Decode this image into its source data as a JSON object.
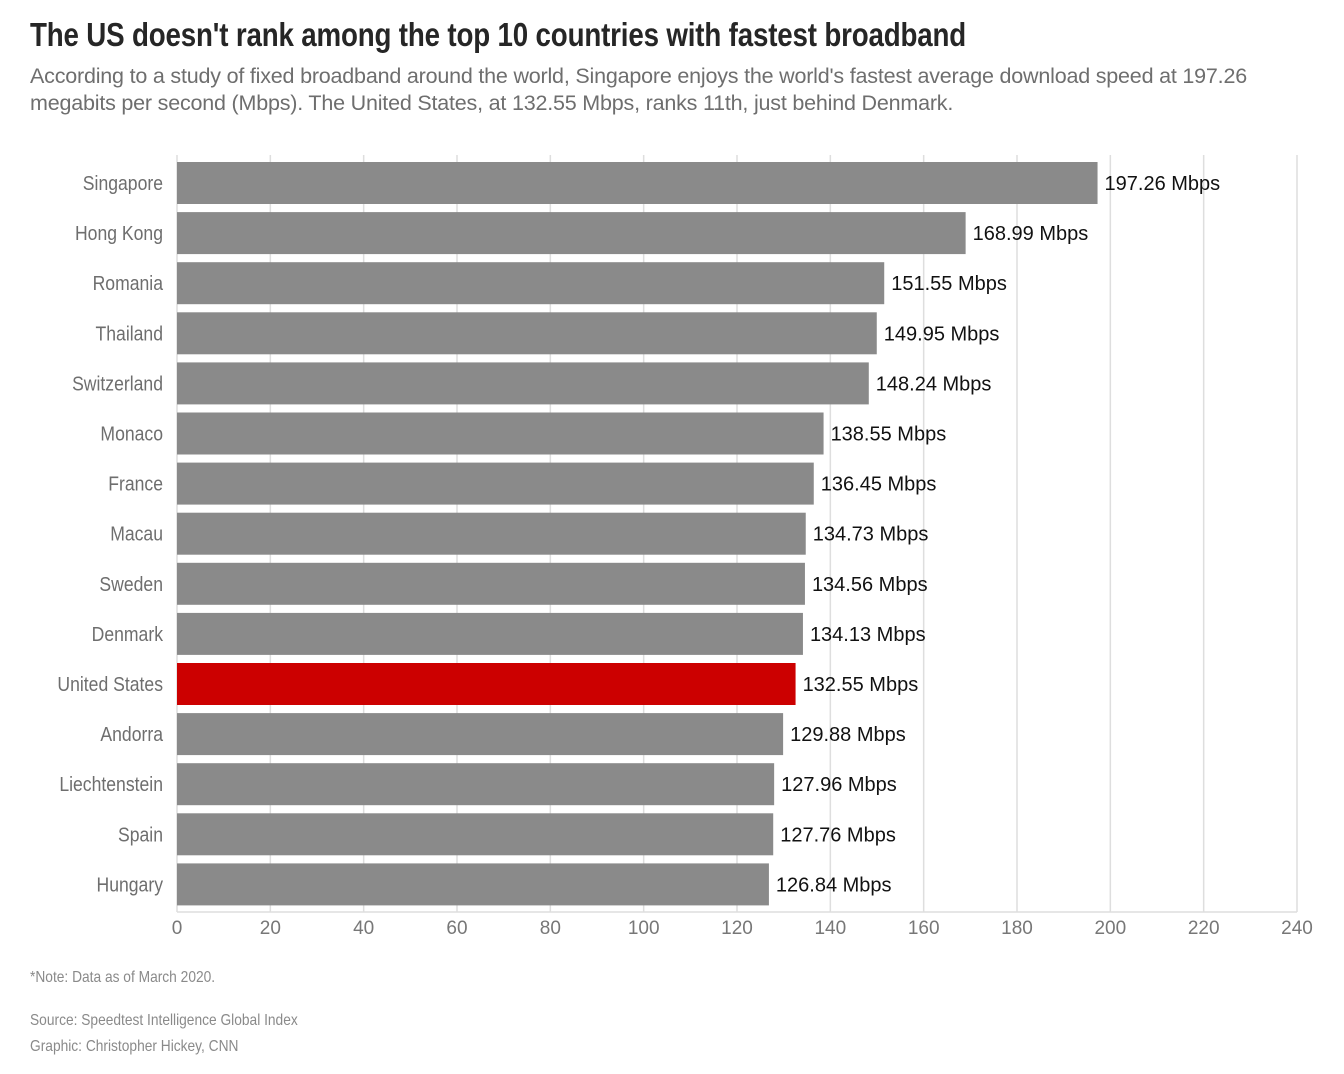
{
  "chart_data": {
    "type": "bar",
    "orientation": "horizontal",
    "title": "The US doesn't rank among the top 10 countries with fastest broadband",
    "subtitle": "According to a study of fixed broadband around the world, Singapore enjoys the world's fastest average download speed at 197.26 megabits per second (Mbps). The United States, at 132.55 Mbps, ranks 11th, just behind Denmark.",
    "categories": [
      "Singapore",
      "Hong Kong",
      "Romania",
      "Thailand",
      "Switzerland",
      "Monaco",
      "France",
      "Macau",
      "Sweden",
      "Denmark",
      "United States",
      "Andorra",
      "Liechtenstein",
      "Spain",
      "Hungary"
    ],
    "values": [
      197.26,
      168.99,
      151.55,
      149.95,
      148.24,
      138.55,
      136.45,
      134.73,
      134.56,
      134.13,
      132.55,
      129.88,
      127.96,
      127.76,
      126.84
    ],
    "data_labels": [
      "197.26 Mbps",
      "168.99 Mbps",
      "151.55 Mbps",
      "149.95 Mbps",
      "148.24 Mbps",
      "138.55 Mbps",
      "136.45 Mbps",
      "134.73 Mbps",
      "134.56 Mbps",
      "134.13 Mbps",
      "132.55 Mbps",
      "129.88 Mbps",
      "127.96 Mbps",
      "127.76 Mbps",
      "126.84 Mbps"
    ],
    "highlight": "United States",
    "xlim": [
      0,
      240
    ],
    "xticks": [
      "0",
      "20",
      "40",
      "60",
      "80",
      "100",
      "120",
      "140",
      "160",
      "180",
      "200",
      "220",
      "240"
    ],
    "grid": true,
    "colors": {
      "bar": "#8a8a8a",
      "highlight": "#cc0000",
      "grid": "#dedede",
      "text": "#262626",
      "label": "#6e6e6e"
    }
  },
  "footer": {
    "note": "*Note: Data as of March 2020.",
    "source": "Source: Speedtest Intelligence Global Index",
    "credit": "Graphic: Christopher Hickey, CNN"
  }
}
